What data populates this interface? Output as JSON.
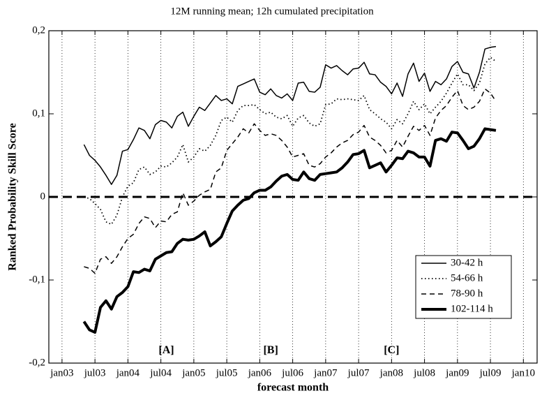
{
  "chart_data": {
    "type": "line",
    "title": "12M running mean; 12h cumulated precipitation",
    "x_label": "forecast month",
    "y_label": "Ranked Probability Skill Score",
    "xlim": [
      -2.4,
      86.5
    ],
    "xticks": [
      {
        "value": 0,
        "label": "jan03"
      },
      {
        "value": 6,
        "label": "jul03"
      },
      {
        "value": 12,
        "label": "jan04"
      },
      {
        "value": 18,
        "label": "jul04"
      },
      {
        "value": 24,
        "label": "jan05"
      },
      {
        "value": 30,
        "label": "jul05"
      },
      {
        "value": 36,
        "label": "jan06"
      },
      {
        "value": 42,
        "label": "jul06"
      },
      {
        "value": 48,
        "label": "jan07"
      },
      {
        "value": 54,
        "label": "jul07"
      },
      {
        "value": 60,
        "label": "jan08"
      },
      {
        "value": 66,
        "label": "jul08"
      },
      {
        "value": 72,
        "label": "jan09"
      },
      {
        "value": 78,
        "label": "jul09"
      },
      {
        "value": 84,
        "label": "jan10"
      }
    ],
    "ylim": [
      -0.2,
      0.2
    ],
    "yticks": [
      {
        "value": -0.2,
        "label": "-0,2"
      },
      {
        "value": -0.1,
        "label": "-0,1"
      },
      0,
      {
        "value": 0.1,
        "label": "0,1"
      },
      {
        "value": 0.2,
        "label": "0,2"
      }
    ],
    "grid": "x",
    "reference_line": 0,
    "legend": "lower right",
    "annotations": [
      {
        "text": "[A]",
        "x": 19,
        "y": -0.185
      },
      {
        "text": "[B]",
        "x": 38,
        "y": -0.185
      },
      {
        "text": "[C]",
        "x": 60,
        "y": -0.185
      }
    ],
    "x": [
      4,
      5,
      6,
      7,
      8,
      9,
      10,
      11,
      12,
      13,
      14,
      15,
      16,
      17,
      18,
      19,
      20,
      21,
      22,
      23,
      24,
      25,
      26,
      27,
      28,
      29,
      30,
      31,
      32,
      33,
      34,
      35,
      36,
      37,
      38,
      39,
      40,
      41,
      42,
      43,
      44,
      45,
      46,
      47,
      48,
      49,
      50,
      51,
      52,
      53,
      54,
      55,
      56,
      57,
      58,
      59,
      60,
      61,
      62,
      63,
      64,
      65,
      66,
      67,
      68,
      69,
      70,
      71,
      72,
      73,
      74,
      75,
      76,
      77,
      78,
      79
    ],
    "series": [
      {
        "name": "30-42 h",
        "color": "#000000",
        "style": "solid",
        "width": 1.5,
        "values": [
          0.063,
          0.05,
          0.044,
          0.036,
          0.026,
          0.015,
          0.026,
          0.055,
          0.057,
          0.069,
          0.083,
          0.08,
          0.07,
          0.087,
          0.092,
          0.09,
          0.083,
          0.097,
          0.102,
          0.085,
          0.097,
          0.108,
          0.104,
          0.113,
          0.122,
          0.116,
          0.118,
          0.112,
          0.133,
          0.136,
          0.139,
          0.142,
          0.126,
          0.123,
          0.13,
          0.122,
          0.119,
          0.124,
          0.116,
          0.137,
          0.138,
          0.127,
          0.126,
          0.132,
          0.159,
          0.155,
          0.158,
          0.152,
          0.147,
          0.154,
          0.155,
          0.162,
          0.148,
          0.147,
          0.138,
          0.133,
          0.124,
          0.137,
          0.121,
          0.148,
          0.161,
          0.139,
          0.149,
          0.127,
          0.139,
          0.135,
          0.142,
          0.157,
          0.163,
          0.15,
          0.148,
          0.131,
          0.15,
          0.178,
          0.18,
          0.181
        ]
      },
      {
        "name": "54-66 h",
        "color": "#000000",
        "style": "dotted",
        "width": 1.8,
        "values": [
          0.0,
          -0.002,
          -0.008,
          -0.015,
          -0.03,
          -0.033,
          -0.022,
          0.0,
          0.013,
          0.017,
          0.033,
          0.036,
          0.027,
          0.03,
          0.037,
          0.036,
          0.041,
          0.048,
          0.063,
          0.042,
          0.048,
          0.058,
          0.055,
          0.062,
          0.074,
          0.092,
          0.096,
          0.09,
          0.104,
          0.11,
          0.11,
          0.111,
          0.105,
          0.1,
          0.102,
          0.096,
          0.094,
          0.098,
          0.085,
          0.095,
          0.098,
          0.089,
          0.085,
          0.088,
          0.111,
          0.112,
          0.118,
          0.117,
          0.118,
          0.117,
          0.116,
          0.122,
          0.105,
          0.1,
          0.094,
          0.09,
          0.082,
          0.093,
          0.088,
          0.1,
          0.115,
          0.105,
          0.112,
          0.1,
          0.108,
          0.115,
          0.125,
          0.137,
          0.148,
          0.135,
          0.135,
          0.128,
          0.137,
          0.16,
          0.168,
          0.163
        ]
      },
      {
        "name": "78-90 h",
        "color": "#000000",
        "style": "dashed",
        "width": 1.5,
        "values": [
          -0.084,
          -0.086,
          -0.092,
          -0.075,
          -0.072,
          -0.08,
          -0.072,
          -0.06,
          -0.05,
          -0.045,
          -0.032,
          -0.024,
          -0.026,
          -0.037,
          -0.029,
          -0.03,
          -0.021,
          -0.018,
          0.005,
          -0.01,
          -0.005,
          0.002,
          0.006,
          0.009,
          0.03,
          0.035,
          0.056,
          0.064,
          0.072,
          0.082,
          0.077,
          0.088,
          0.08,
          0.074,
          0.076,
          0.074,
          0.068,
          0.06,
          0.048,
          0.05,
          0.052,
          0.038,
          0.036,
          0.04,
          0.048,
          0.053,
          0.06,
          0.065,
          0.068,
          0.075,
          0.078,
          0.086,
          0.072,
          0.068,
          0.062,
          0.053,
          0.056,
          0.068,
          0.06,
          0.073,
          0.085,
          0.08,
          0.086,
          0.074,
          0.095,
          0.104,
          0.11,
          0.12,
          0.128,
          0.11,
          0.105,
          0.108,
          0.115,
          0.13,
          0.125,
          0.115
        ]
      },
      {
        "name": "102-114 h",
        "color": "#000000",
        "style": "solid",
        "width": 4,
        "values": [
          -0.15,
          -0.16,
          -0.163,
          -0.133,
          -0.125,
          -0.135,
          -0.12,
          -0.115,
          -0.108,
          -0.09,
          -0.091,
          -0.087,
          -0.089,
          -0.075,
          -0.071,
          -0.067,
          -0.066,
          -0.056,
          -0.051,
          -0.052,
          -0.051,
          -0.047,
          -0.042,
          -0.059,
          -0.054,
          -0.048,
          -0.032,
          -0.017,
          -0.01,
          -0.004,
          -0.002,
          0.005,
          0.008,
          0.008,
          0.012,
          0.019,
          0.025,
          0.027,
          0.021,
          0.02,
          0.03,
          0.022,
          0.02,
          0.027,
          0.028,
          0.029,
          0.03,
          0.035,
          0.042,
          0.051,
          0.052,
          0.056,
          0.035,
          0.038,
          0.041,
          0.03,
          0.038,
          0.047,
          0.046,
          0.055,
          0.053,
          0.048,
          0.048,
          0.037,
          0.068,
          0.07,
          0.067,
          0.078,
          0.077,
          0.068,
          0.058,
          0.061,
          0.07,
          0.082,
          0.081,
          0.08
        ]
      }
    ]
  }
}
